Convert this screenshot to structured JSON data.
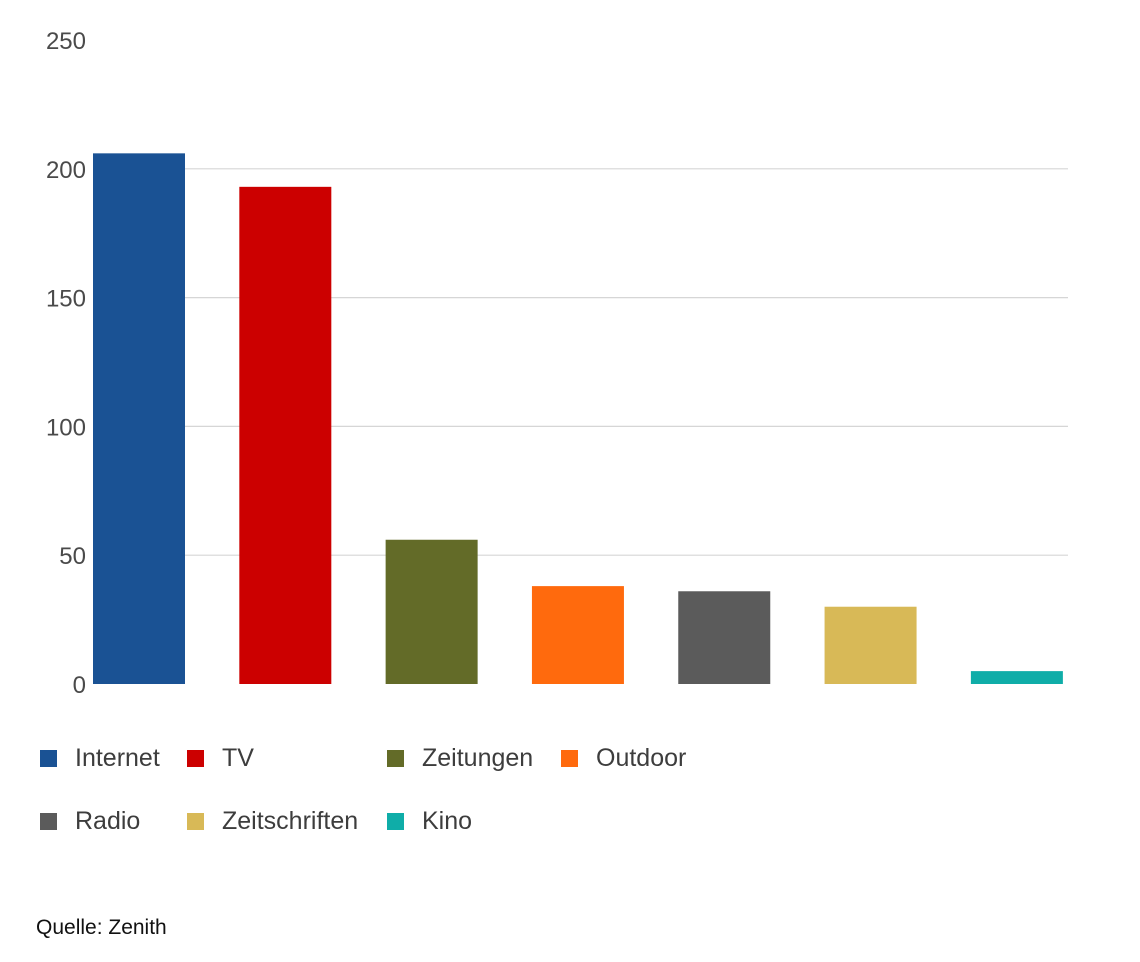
{
  "chart_data": {
    "type": "bar",
    "categories": [
      "Internet",
      "TV",
      "Zeitungen",
      "Outdoor",
      "Radio",
      "Zeitschriften",
      "Kino"
    ],
    "values": [
      206,
      193,
      56,
      38,
      36,
      30,
      5
    ],
    "colors": [
      "#1a5294",
      "#cc0000",
      "#636b28",
      "#ff6a0d",
      "#5b5b5b",
      "#d8b957",
      "#0fada8"
    ],
    "yticks": [
      0,
      50,
      100,
      150,
      200,
      250
    ],
    "ylim": [
      0,
      250
    ],
    "grid": true,
    "legend_position": "bottom"
  },
  "legend": {
    "items": [
      {
        "label": "Internet",
        "color": "#1a5294"
      },
      {
        "label": "TV",
        "color": "#cc0000"
      },
      {
        "label": "Zeitungen",
        "color": "#636b28"
      },
      {
        "label": "Outdoor",
        "color": "#ff6a0d"
      },
      {
        "label": "Radio",
        "color": "#5b5b5b"
      },
      {
        "label": "Zeitschriften",
        "color": "#d8b957"
      },
      {
        "label": "Kino",
        "color": "#0fada8"
      }
    ]
  },
  "source": "Quelle: Zenith"
}
